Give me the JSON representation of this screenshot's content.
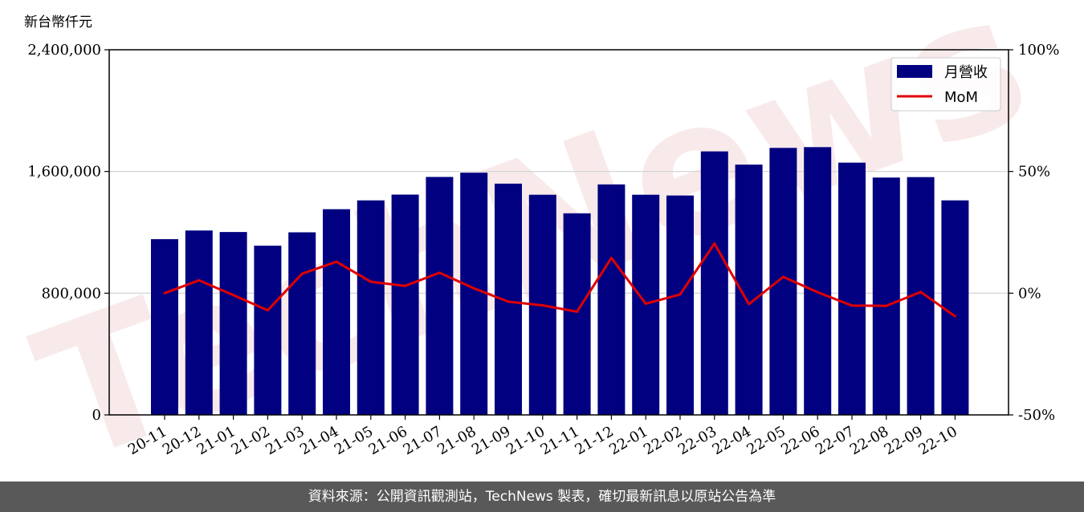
{
  "chart_data": {
    "type": "bar+line",
    "y_unit_label": "新台幣仟元",
    "categories": [
      "20-11",
      "20-12",
      "21-01",
      "21-02",
      "21-03",
      "21-04",
      "21-05",
      "21-06",
      "21-07",
      "21-08",
      "21-09",
      "21-10",
      "21-11",
      "21-12",
      "22-01",
      "22-02",
      "22-03",
      "22-04",
      "22-05",
      "22-06",
      "22-07",
      "22-08",
      "22-09",
      "22-10"
    ],
    "series": [
      {
        "name": "月營收",
        "type": "bar",
        "axis": "left",
        "color": "#000080",
        "values": [
          1155000,
          1212000,
          1202000,
          1112000,
          1200000,
          1352000,
          1410000,
          1448000,
          1564000,
          1592000,
          1520000,
          1447000,
          1325000,
          1515000,
          1447000,
          1442000,
          1732000,
          1645000,
          1755000,
          1760000,
          1658000,
          1560000,
          1563000,
          1410000
        ]
      },
      {
        "name": "MoM",
        "type": "line",
        "axis": "right",
        "color": "#e00000",
        "values": [
          0.0,
          5.3,
          -0.8,
          -7.0,
          8.0,
          12.9,
          4.7,
          3.0,
          8.4,
          2.0,
          -3.5,
          -5.0,
          -7.6,
          14.5,
          -4.3,
          -0.5,
          20.4,
          -4.5,
          6.7,
          0.4,
          -5.1,
          -5.2,
          0.5,
          -9.5
        ]
      }
    ],
    "ylim_left": [
      0,
      2400000
    ],
    "yticks_left": [
      "0",
      "800,000",
      "1,600,000",
      "2,400,000"
    ],
    "ylim_right": [
      -50,
      100
    ],
    "yticks_right": [
      "-50%",
      "0%",
      "50%",
      "100%"
    ],
    "grid": "horizontal",
    "legend_position": "top-right"
  },
  "footer": {
    "text": "資料來源：公開資訊觀測站，TechNews 製表，確切最新訊息以原站公告為準"
  },
  "watermark": {
    "text": "TechNews"
  }
}
